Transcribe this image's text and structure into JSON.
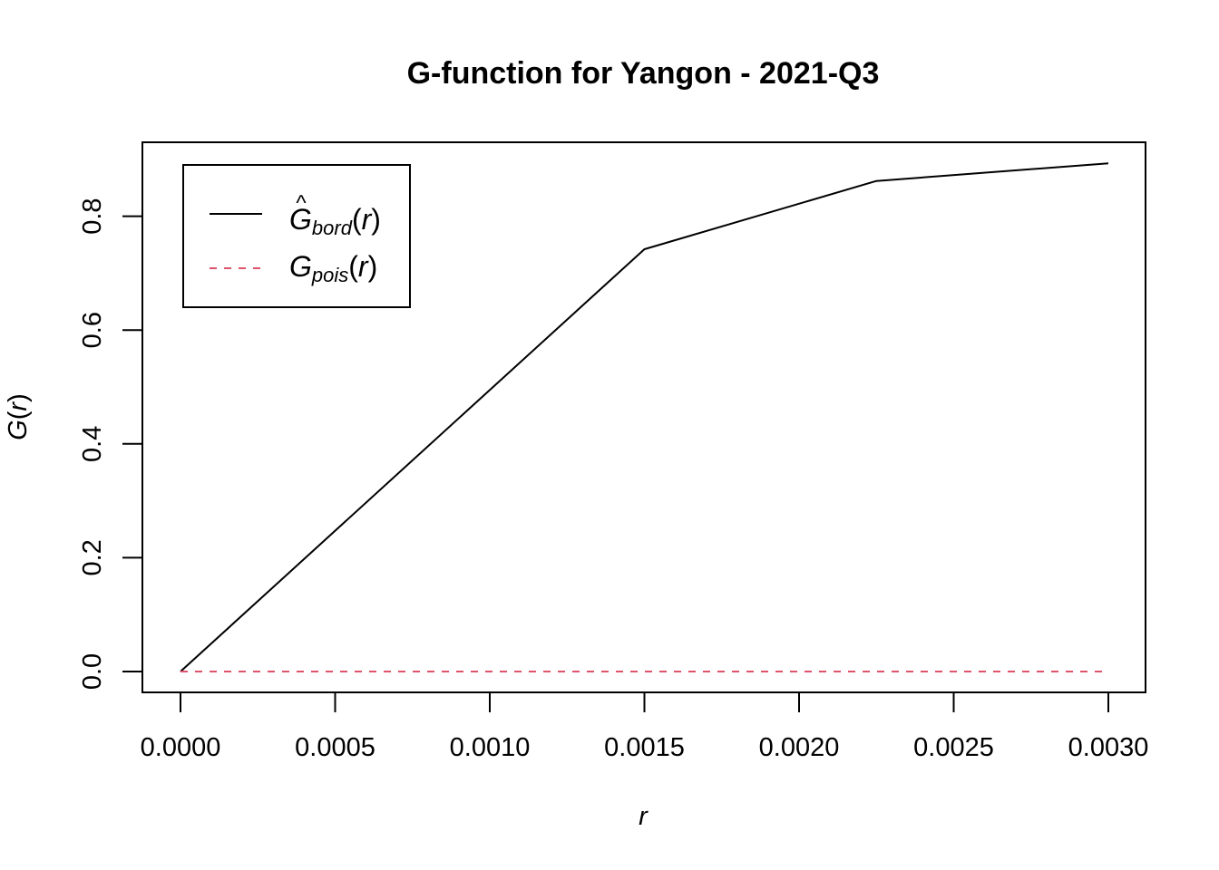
{
  "chart_data": {
    "type": "line",
    "title": "G-function for Yangon - 2021-Q3",
    "xlabel": "r",
    "ylabel": {
      "main": "G",
      "paren_open": "(",
      "var": "r",
      "paren_close": ")"
    },
    "xlim": [
      0,
      0.003
    ],
    "ylim": [
      0,
      0.9
    ],
    "x_ticks": [
      "0.0000",
      "0.0005",
      "0.0010",
      "0.0015",
      "0.0020",
      "0.0025",
      "0.0030"
    ],
    "y_ticks": [
      "0.0",
      "0.2",
      "0.4",
      "0.6",
      "0.8"
    ],
    "grid": false,
    "legend_position": "top-left",
    "series": [
      {
        "name": "Ĝbord(r)",
        "legend": {
          "hat": "^",
          "main": "G",
          "sub": "bord",
          "paren_open": "(",
          "var": "r",
          "paren_close": ")"
        },
        "color": "#000000",
        "dash": "solid",
        "x": [
          0,
          0.0015,
          0.00225,
          0.003
        ],
        "y": [
          0,
          0.742,
          0.862,
          0.893
        ]
      },
      {
        "name": "Gpois(r)",
        "legend": {
          "hat": "",
          "main": "G",
          "sub": "pois",
          "paren_open": "(",
          "var": "r",
          "paren_close": ")"
        },
        "color": "#DF536B",
        "dash": "dashed",
        "x": [
          0,
          0.003
        ],
        "y": [
          0,
          0
        ]
      }
    ]
  }
}
